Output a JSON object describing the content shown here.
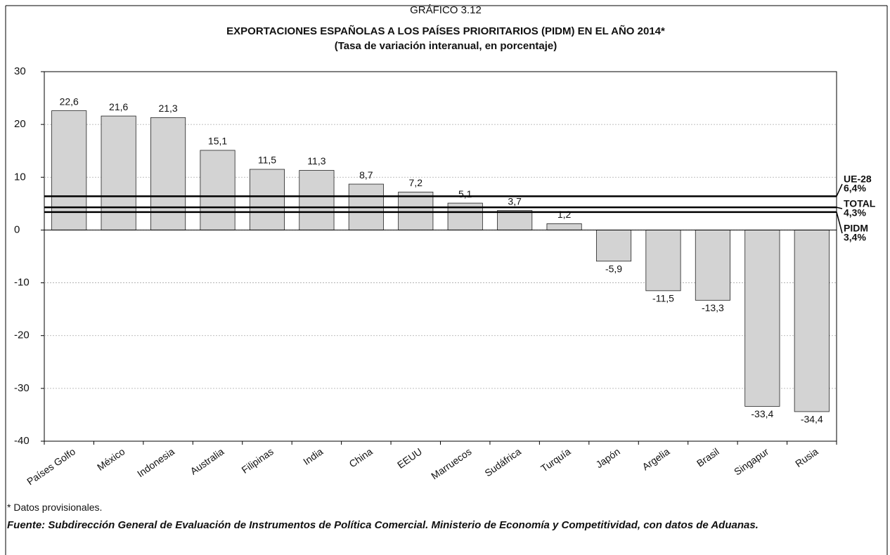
{
  "chart_data": {
    "type": "bar",
    "supertitle": "GRÁFICO 3.12",
    "title": "EXPORTACIONES ESPAÑOLAS A LOS PAÍSES PRIORITARIOS (PIDM) EN EL AÑO 2014*",
    "subtitle": "(Tasa de variación interanual, en porcentaje)",
    "categories": [
      "Países Golfo",
      "México",
      "Indonesia",
      "Australia",
      "Filipinas",
      "India",
      "China",
      "EEUU",
      "Marruecos",
      "Sudáfrica",
      "Turquía",
      "Japón",
      "Argelia",
      "Brasil",
      "Singapur",
      "Rusia"
    ],
    "values": [
      22.6,
      21.6,
      21.3,
      15.1,
      11.5,
      11.3,
      8.7,
      7.2,
      5.1,
      3.7,
      1.2,
      -5.9,
      -11.5,
      -13.3,
      -33.4,
      -34.4
    ],
    "value_labels": [
      "22,6",
      "21,6",
      "21,3",
      "15,1",
      "11,5",
      "11,3",
      "8,7",
      "7,2",
      "5,1",
      "3,7",
      "1,2",
      "-5,9",
      "-11,5",
      "-13,3",
      "-33,4",
      "-34,4"
    ],
    "color": "#d3d3d3",
    "ylim": [
      -40,
      30
    ],
    "yticks": [
      -40,
      -30,
      -20,
      -10,
      0,
      10,
      20,
      30
    ],
    "grid": true,
    "reference_lines": [
      {
        "name": "UE-28",
        "value": 6.4,
        "label": "6,4%"
      },
      {
        "name": "TOTAL",
        "value": 4.3,
        "label": "4,3%"
      },
      {
        "name": "PIDM",
        "value": 3.4,
        "label": "3,4%"
      }
    ],
    "footnote": "* Datos provisionales.",
    "source": "Fuente: Subdirección General de Evaluación de Instrumentos de Política Comercial. Ministerio de Economía y Competitividad, con datos de Aduanas."
  }
}
